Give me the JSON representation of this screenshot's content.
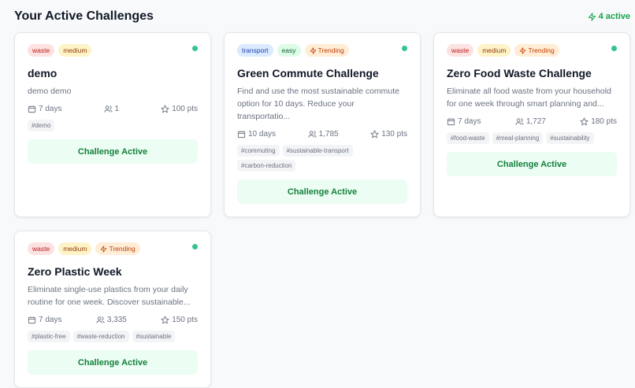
{
  "header": {
    "title": "Your Active Challenges",
    "active_count": "4 active"
  },
  "colors": {
    "accent": "#16a34a",
    "status_dot": "#34c48b",
    "button_bg": "#ecfdf3"
  },
  "challenges": [
    {
      "badges": [
        {
          "label": "waste",
          "kind": "waste"
        },
        {
          "label": "medium",
          "kind": "medium"
        }
      ],
      "title": "demo",
      "description": "demo demo",
      "duration": "7 days",
      "participants": "1",
      "points": "100 pts",
      "tags": [
        "#demo"
      ],
      "button": "Challenge Active"
    },
    {
      "badges": [
        {
          "label": "transport",
          "kind": "transport"
        },
        {
          "label": "easy",
          "kind": "easy"
        },
        {
          "label": "Trending",
          "kind": "trending"
        }
      ],
      "title": "Green Commute Challenge",
      "description": "Find and use the most sustainable commute option for 10 days. Reduce your transportatio...",
      "duration": "10 days",
      "participants": "1,785",
      "points": "130 pts",
      "tags": [
        "#commuting",
        "#sustainable-transport",
        "#carbon-reduction"
      ],
      "button": "Challenge Active"
    },
    {
      "badges": [
        {
          "label": "waste",
          "kind": "waste"
        },
        {
          "label": "medium",
          "kind": "medium"
        },
        {
          "label": "Trending",
          "kind": "trending"
        }
      ],
      "title": "Zero Food Waste Challenge",
      "description": "Eliminate all food waste from your household for one week through smart planning and...",
      "duration": "7 days",
      "participants": "1,727",
      "points": "180 pts",
      "tags": [
        "#food-waste",
        "#meal-planning",
        "#sustainability"
      ],
      "button": "Challenge Active"
    },
    {
      "badges": [
        {
          "label": "waste",
          "kind": "waste"
        },
        {
          "label": "medium",
          "kind": "medium"
        },
        {
          "label": "Trending",
          "kind": "trending"
        }
      ],
      "title": "Zero Plastic Week",
      "description": "Eliminate single-use plastics from your daily routine for one week. Discover sustainable...",
      "duration": "7 days",
      "participants": "3,335",
      "points": "150 pts",
      "tags": [
        "#plastic-free",
        "#waste-reduction",
        "#sustainable"
      ],
      "button": "Challenge Active"
    }
  ]
}
